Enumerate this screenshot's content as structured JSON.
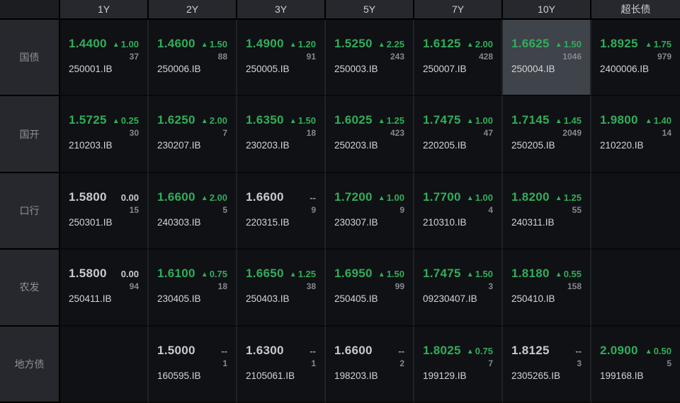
{
  "icons": {
    "up_triangle": "▲"
  },
  "colors": {
    "up_green": "#31ad5a",
    "flat_white": "#c8cbce",
    "dash_gray": "#9b9ea3",
    "highlight_cell_bg": "#3f434a"
  },
  "board": {
    "corner_label": "",
    "columns": [
      {
        "label": "1Y",
        "slug": "1y"
      },
      {
        "label": "2Y",
        "slug": "2y"
      },
      {
        "label": "3Y",
        "slug": "3y"
      },
      {
        "label": "5Y",
        "slug": "5y"
      },
      {
        "label": "7Y",
        "slug": "7y"
      },
      {
        "label": "10Y",
        "slug": "10y",
        "highlight": true
      },
      {
        "label": "超长债",
        "slug": "ultra-long"
      }
    ],
    "rows": [
      {
        "label": "国债",
        "slug": "treasury",
        "cells": [
          {
            "value": "1.4400",
            "change": "1.00",
            "dir": "up",
            "volume": "37",
            "code": "250001.IB"
          },
          {
            "value": "1.4600",
            "change": "1.50",
            "dir": "up",
            "volume": "88",
            "code": "250006.IB"
          },
          {
            "value": "1.4900",
            "change": "1.20",
            "dir": "up",
            "volume": "91",
            "code": "250005.IB"
          },
          {
            "value": "1.5250",
            "change": "2.25",
            "dir": "up",
            "volume": "243",
            "code": "250003.IB"
          },
          {
            "value": "1.6125",
            "change": "2.00",
            "dir": "up",
            "volume": "428",
            "code": "250007.IB"
          },
          {
            "value": "1.6625",
            "change": "1.50",
            "dir": "up",
            "volume": "1046",
            "code": "250004.IB",
            "highlight": true
          },
          {
            "value": "1.8925",
            "change": "1.75",
            "dir": "up",
            "volume": "979",
            "code": "2400006.IB"
          }
        ]
      },
      {
        "label": "国开",
        "slug": "cdb",
        "cells": [
          {
            "value": "1.5725",
            "change": "0.25",
            "dir": "up",
            "volume": "30",
            "code": "210203.IB"
          },
          {
            "value": "1.6250",
            "change": "2.00",
            "dir": "up",
            "volume": "7",
            "code": "230207.IB"
          },
          {
            "value": "1.6350",
            "change": "1.50",
            "dir": "up",
            "volume": "18",
            "code": "230203.IB"
          },
          {
            "value": "1.6025",
            "change": "1.25",
            "dir": "up",
            "volume": "423",
            "code": "250203.IB"
          },
          {
            "value": "1.7475",
            "change": "1.00",
            "dir": "up",
            "volume": "47",
            "code": "220205.IB"
          },
          {
            "value": "1.7145",
            "change": "1.45",
            "dir": "up",
            "volume": "2049",
            "code": "250205.IB"
          },
          {
            "value": "1.9800",
            "change": "1.40",
            "dir": "up",
            "volume": "14",
            "code": "210220.IB"
          }
        ]
      },
      {
        "label": "口行",
        "slug": "exim",
        "cells": [
          {
            "value": "1.5800",
            "change": "0.00",
            "dir": "flat",
            "volume": "15",
            "code": "250301.IB"
          },
          {
            "value": "1.6600",
            "change": "2.00",
            "dir": "up",
            "volume": "5",
            "code": "240303.IB"
          },
          {
            "value": "1.6600",
            "change": "--",
            "dir": "none",
            "volume": "9",
            "code": "220315.IB"
          },
          {
            "value": "1.7200",
            "change": "1.00",
            "dir": "up",
            "volume": "9",
            "code": "230307.IB"
          },
          {
            "value": "1.7700",
            "change": "1.00",
            "dir": "up",
            "volume": "4",
            "code": "210310.IB"
          },
          {
            "value": "1.8200",
            "change": "1.25",
            "dir": "up",
            "volume": "55",
            "code": "240311.IB"
          },
          null
        ]
      },
      {
        "label": "农发",
        "slug": "adbc",
        "cells": [
          {
            "value": "1.5800",
            "change": "0.00",
            "dir": "flat",
            "volume": "94",
            "code": "250411.IB"
          },
          {
            "value": "1.6100",
            "change": "0.75",
            "dir": "up",
            "volume": "18",
            "code": "230405.IB"
          },
          {
            "value": "1.6650",
            "change": "1.25",
            "dir": "up",
            "volume": "38",
            "code": "250403.IB"
          },
          {
            "value": "1.6950",
            "change": "1.50",
            "dir": "up",
            "volume": "99",
            "code": "250405.IB"
          },
          {
            "value": "1.7475",
            "change": "1.50",
            "dir": "up",
            "volume": "3",
            "code": "09230407.IB"
          },
          {
            "value": "1.8180",
            "change": "0.55",
            "dir": "up",
            "volume": "158",
            "code": "250410.IB"
          },
          null
        ]
      },
      {
        "label": "地方债",
        "slug": "local-gov",
        "cells": [
          null,
          {
            "value": "1.5000",
            "change": "--",
            "dir": "none",
            "volume": "1",
            "code": "160595.IB"
          },
          {
            "value": "1.6300",
            "change": "--",
            "dir": "none",
            "volume": "1",
            "code": "2105061.IB"
          },
          {
            "value": "1.6600",
            "change": "--",
            "dir": "none",
            "volume": "2",
            "code": "198203.IB"
          },
          {
            "value": "1.8025",
            "change": "0.75",
            "dir": "up",
            "volume": "7",
            "code": "199129.IB"
          },
          {
            "value": "1.8125",
            "change": "--",
            "dir": "none",
            "volume": "3",
            "code": "2305265.IB"
          },
          {
            "value": "2.0900",
            "change": "0.50",
            "dir": "up",
            "volume": "5",
            "code": "199168.IB"
          }
        ]
      }
    ]
  }
}
